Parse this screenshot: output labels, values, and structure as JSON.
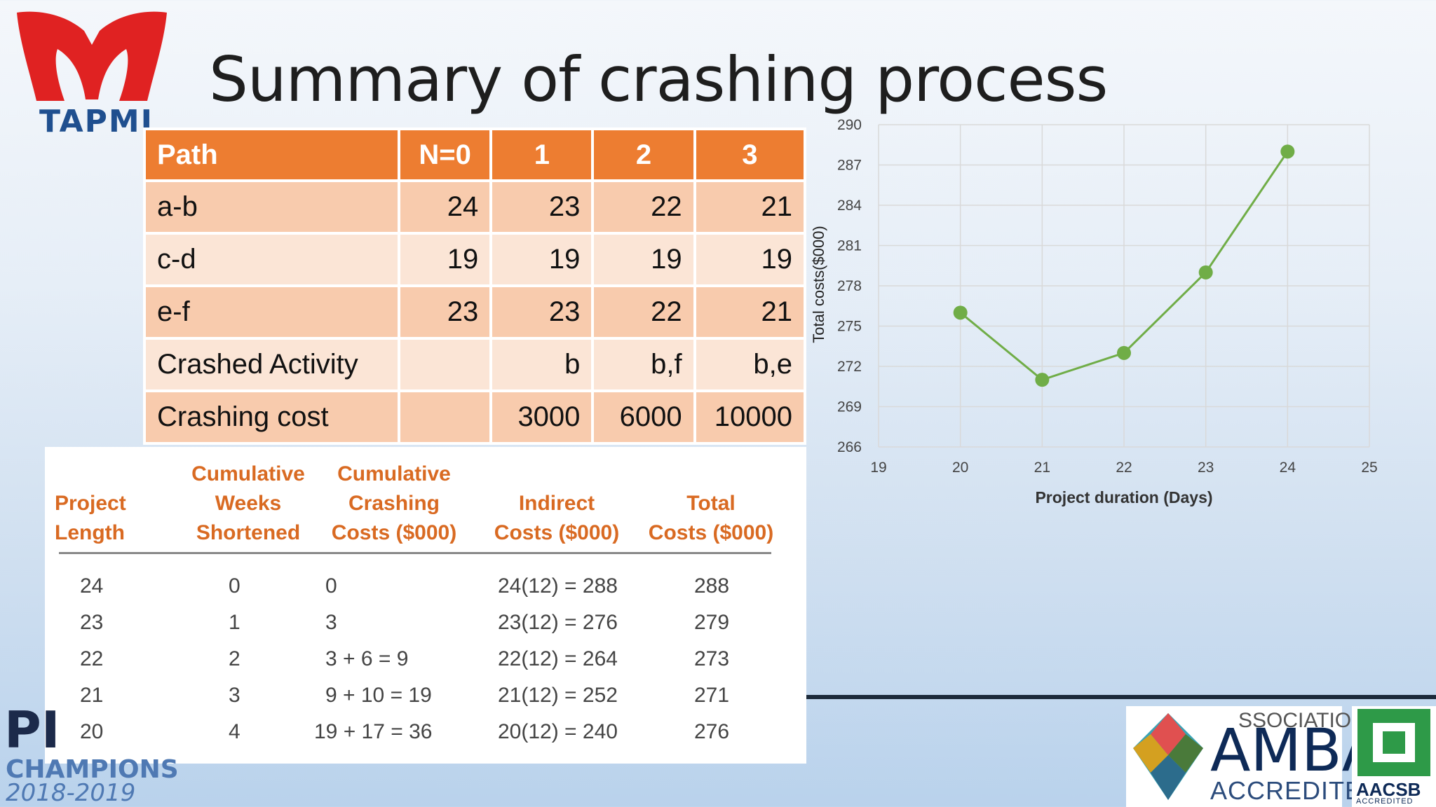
{
  "slide": {
    "title": "Summary of crashing process",
    "logo_text": "TAPMI"
  },
  "path_table": {
    "headers": [
      "Path",
      "N=0",
      "1",
      "2",
      "3"
    ],
    "rows": [
      [
        "a-b",
        "24",
        "23",
        "22",
        "21"
      ],
      [
        "c-d",
        "19",
        "19",
        "19",
        "19"
      ],
      [
        "e-f",
        "23",
        "23",
        "22",
        "21"
      ],
      [
        "Crashed Activity",
        "",
        "b",
        "b,f",
        "b,e"
      ],
      [
        "Crashing cost",
        "",
        "3000",
        "6000",
        "10000"
      ]
    ]
  },
  "book_table": {
    "headers": {
      "col1": [
        "Project",
        "Length"
      ],
      "col2": [
        "Cumulative",
        "Weeks",
        "Shortened"
      ],
      "col3": [
        "Cumulative",
        "Crashing",
        "Costs ($000)"
      ],
      "col4": [
        "Indirect",
        "Costs ($000)"
      ],
      "col5": [
        "Total",
        "Costs ($000)"
      ]
    },
    "rows": [
      [
        "24",
        "0",
        "0",
        "24(12) = 288",
        "288"
      ],
      [
        "23",
        "1",
        "3",
        "23(12) = 276",
        "279"
      ],
      [
        "22",
        "2",
        "3 + 6 = 9",
        "22(12) = 264",
        "273"
      ],
      [
        "21",
        "3",
        "9 + 10 = 19",
        "21(12) = 252",
        "271"
      ],
      [
        "20",
        "4",
        "19 + 17 = 36",
        "20(12) = 240",
        "276"
      ]
    ]
  },
  "chart_data": {
    "type": "line",
    "x": [
      20,
      21,
      22,
      23,
      24
    ],
    "series": [
      {
        "values": [
          276,
          271,
          273,
          279,
          288
        ],
        "color": "#70ad47"
      }
    ],
    "xlabel": "Project duration (Days)",
    "ylabel": "Total costs($000)",
    "xlim": [
      19,
      25
    ],
    "ylim": [
      266,
      290
    ],
    "xticks": [
      "19",
      "20",
      "21",
      "22",
      "23",
      "24",
      "25"
    ],
    "yticks": [
      "266",
      "269",
      "272",
      "275",
      "278",
      "281",
      "284",
      "287",
      "290"
    ],
    "grid": true
  },
  "footer": {
    "champions_big": "PI",
    "champions_sub": "CHAMPIONS",
    "champions_year": "2018-2019",
    "amba_top": "SSOCIATION",
    "amba_main": "AMBA",
    "amba_accredited": "ACCREDITED",
    "aacsb": "AACSB",
    "aacsb_accredited": "ACCREDITED"
  },
  "colors": {
    "orange": "#ed7d31",
    "row_dark": "#f8cbad",
    "row_light": "#fbe5d6",
    "line_green": "#70ad47",
    "logo_red": "#e02222"
  }
}
